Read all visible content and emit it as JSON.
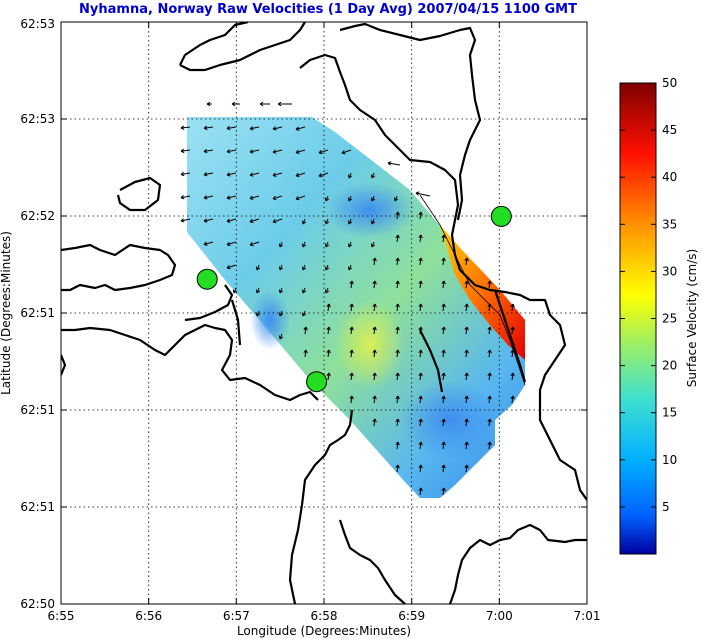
{
  "chart_data": {
    "type": "heatmap",
    "title": "Nyhamna, Norway Raw Velocities (1 Day Avg) 2007/04/15 1100 GMT",
    "xlabel": "Longitude (Degrees:Minutes)",
    "ylabel": "Latitude (Degrees:Minutes)",
    "xlim": [
      6.9167,
      7.0167
    ],
    "ylim": [
      62.8333,
      62.8833
    ],
    "x_ticks": [
      "6:55",
      "6:56",
      "6:57",
      "6:58",
      "6:59",
      "7:00",
      "7:01"
    ],
    "y_ticks": [
      "62:50",
      "62:51",
      "62:51",
      "62:51",
      "62:52",
      "62:53",
      "62:53"
    ],
    "grid": true,
    "colorbar": {
      "label": "Surface Velocity (cm/s)",
      "min": 0,
      "max": 50,
      "ticks": [
        "5",
        "10",
        "15",
        "20",
        "25",
        "30",
        "35",
        "40",
        "45",
        "50"
      ],
      "colormap": "jet"
    },
    "sites": [
      {
        "lon": 6.9445,
        "lat": 62.8612
      },
      {
        "lon": 6.9653,
        "lat": 62.8524
      },
      {
        "lon": 7.0004,
        "lat": 62.8666
      }
    ],
    "site_color": "#22dd22"
  }
}
